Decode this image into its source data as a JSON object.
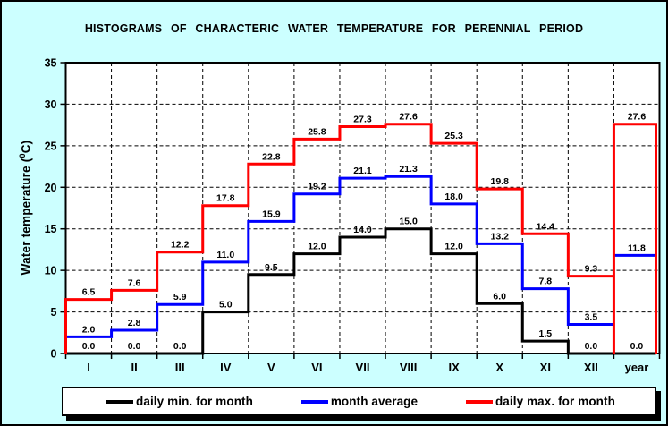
{
  "title": "HISTOGRAMS OF CHARACTERIC WATER TEMPERATURE FOR PERENNIAL PERIOD",
  "y_axis": {
    "label_pre": "Water temperature (",
    "label_sup": "0",
    "label_post": "C)"
  },
  "colors": {
    "background": "#ccffff",
    "plot_background": "#ffffff",
    "grid": "#000000",
    "text": "#000000"
  },
  "chart_data": {
    "type": "line",
    "line_style": "step-histogram-outline",
    "title": "HISTOGRAMS OF CHARACTERIC WATER TEMPERATURE FOR PERENNIAL PERIOD",
    "xlabel": "",
    "ylabel": "Water temperature (0C)",
    "ylim": [
      0,
      35
    ],
    "yticks": [
      0,
      5,
      10,
      15,
      20,
      25,
      30,
      35
    ],
    "grid": true,
    "legend_position": "bottom",
    "value_labels": true,
    "value_label_format": "0.0",
    "categories": [
      "I",
      "II",
      "III",
      "IV",
      "V",
      "VI",
      "VII",
      "VIII",
      "IX",
      "X",
      "XI",
      "XII",
      "year"
    ],
    "series": [
      {
        "name": "daily min. for month",
        "color": "#000000",
        "values": [
          0.0,
          0.0,
          0.0,
          5.0,
          9.5,
          12.0,
          14.0,
          15.0,
          12.0,
          6.0,
          1.5,
          0.0,
          0.0
        ]
      },
      {
        "name": "month average",
        "color": "#0000ff",
        "values": [
          2.0,
          2.8,
          5.9,
          11.0,
          15.9,
          19.2,
          21.1,
          21.3,
          18.0,
          13.2,
          7.8,
          3.5,
          11.8
        ]
      },
      {
        "name": "daily max. for month",
        "color": "#ff0000",
        "values": [
          6.5,
          7.6,
          12.2,
          17.8,
          22.8,
          25.8,
          27.3,
          27.6,
          25.3,
          19.8,
          14.4,
          9.3,
          27.6
        ]
      }
    ]
  }
}
